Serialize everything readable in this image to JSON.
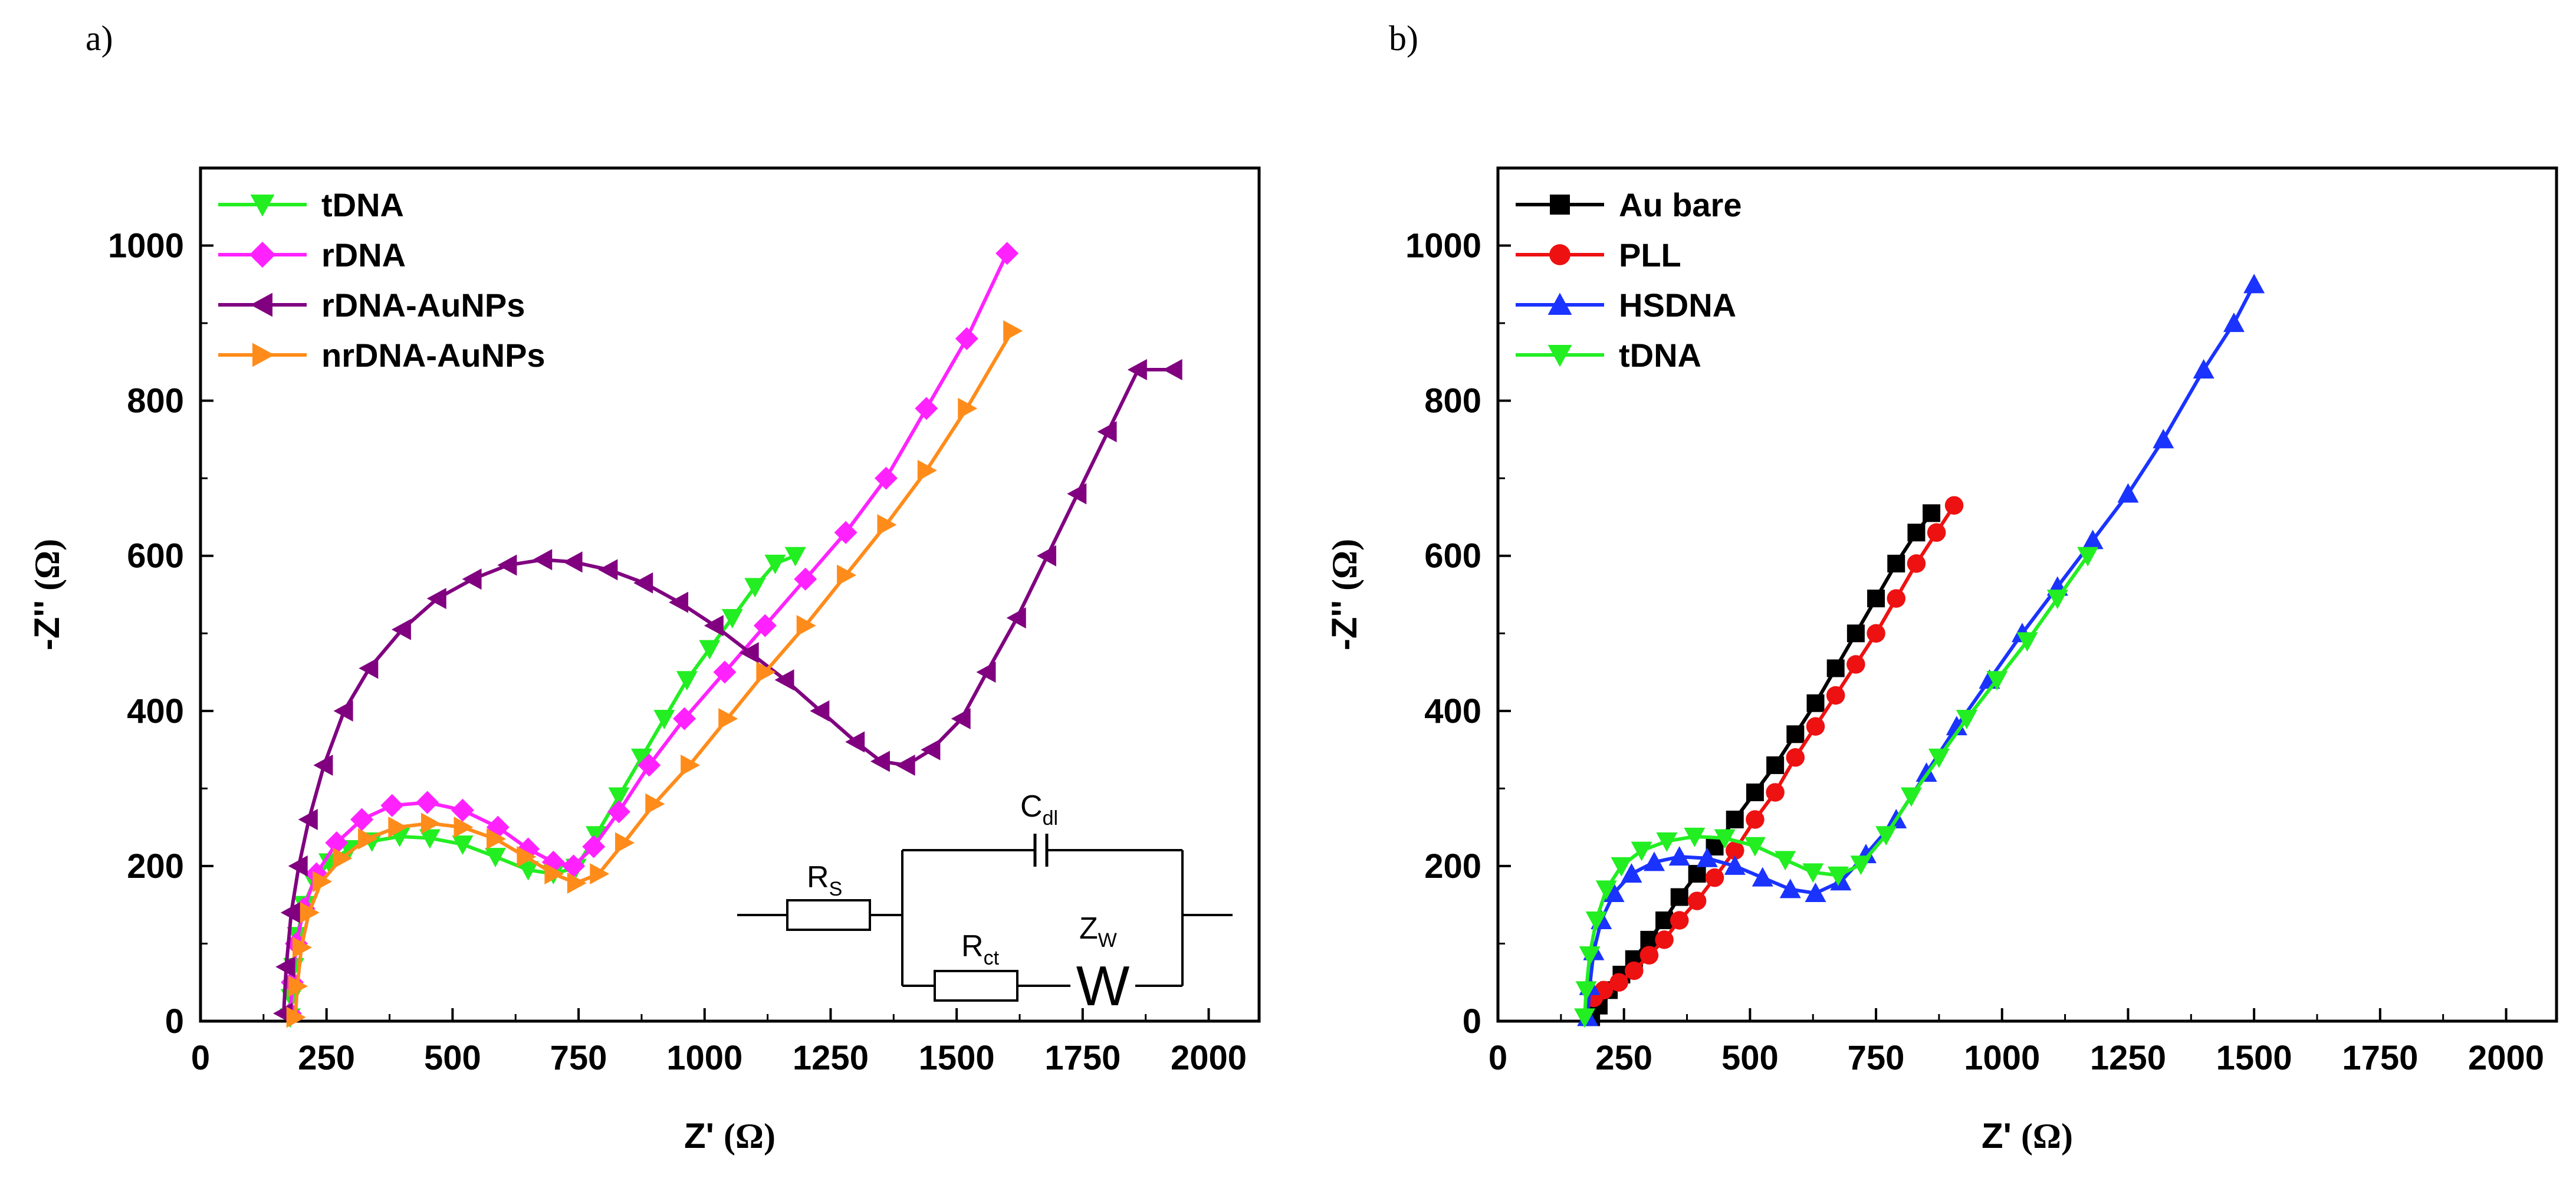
{
  "panels": [
    {
      "id": "a",
      "letter": "a)",
      "chart_data": {
        "type": "scatter",
        "title": "",
        "xlabel": "Z'",
        "xunit": "(Ω)",
        "ylabel": "-Z''",
        "yunit": "(Ω)",
        "xlim": [
          0,
          2100
        ],
        "ylim": [
          0,
          1100
        ],
        "xticks": [
          0,
          250,
          500,
          750,
          1000,
          1250,
          1500,
          1750,
          2000
        ],
        "yticks": [
          0,
          200,
          400,
          600,
          800,
          1000
        ],
        "legend_position": "top-left",
        "series": [
          {
            "name": "tDNA",
            "color": "#22ee22",
            "marker": "triangle-down",
            "x": [
              178,
              180,
              185,
              192,
              205,
              225,
              255,
              295,
              340,
              395,
              455,
              520,
              585,
              650,
              700,
              745,
              785,
              830,
              875,
              920,
              965,
              1010,
              1055,
              1100,
              1140,
              1180
            ],
            "y": [
              5,
              30,
              70,
              110,
              150,
              180,
              205,
              222,
              232,
              238,
              236,
              228,
              212,
              195,
              190,
              198,
              240,
              290,
              340,
              390,
              440,
              480,
              520,
              560,
              590,
              600
            ]
          },
          {
            "name": "rDNA",
            "color": "#ff22ff",
            "marker": "diamond",
            "x": [
              178,
              182,
              190,
              205,
              230,
              270,
              320,
              380,
              450,
              520,
              590,
              650,
              700,
              740,
              780,
              830,
              890,
              960,
              1040,
              1120,
              1200,
              1280,
              1360,
              1440,
              1520,
              1600
            ],
            "y": [
              10,
              50,
              100,
              145,
              190,
              230,
              260,
              278,
              282,
              272,
              250,
              222,
              205,
              200,
              225,
              270,
              330,
              390,
              450,
              510,
              570,
              630,
              700,
              790,
              880,
              990
            ]
          },
          {
            "name": "rDNA-AuNPs",
            "color": "#800080",
            "marker": "triangle-left",
            "x": [
              165,
              170,
              180,
              195,
              215,
              245,
              285,
              335,
              400,
              470,
              540,
              610,
              680,
              740,
              810,
              880,
              950,
              1020,
              1090,
              1160,
              1230,
              1300,
              1350,
              1400,
              1450,
              1510,
              1560,
              1620,
              1680,
              1740,
              1800,
              1860,
              1930
            ],
            "y": [
              10,
              70,
              140,
              200,
              260,
              330,
              400,
              455,
              505,
              545,
              570,
              588,
              595,
              592,
              582,
              565,
              540,
              510,
              475,
              440,
              400,
              360,
              335,
              330,
              350,
              390,
              450,
              520,
              600,
              680,
              760,
              840,
              840
            ]
          },
          {
            "name": "nrDNA-AuNPs",
            "color": "#ff8c1a",
            "marker": "triangle-right",
            "x": [
              188,
              192,
              200,
              215,
              240,
              280,
              330,
              390,
              455,
              520,
              585,
              645,
              700,
              745,
              790,
              840,
              900,
              970,
              1045,
              1120,
              1200,
              1280,
              1360,
              1440,
              1520,
              1610
            ],
            "y": [
              5,
              45,
              95,
              140,
              180,
              210,
              235,
              250,
              255,
              250,
              235,
              212,
              190,
              178,
              190,
              230,
              280,
              330,
              390,
              450,
              510,
              575,
              640,
              710,
              790,
              890
            ]
          }
        ]
      },
      "circuit": {
        "rs": "R",
        "rs_sub": "S",
        "cdl": "C",
        "cdl_sub": "dl",
        "rct": "R",
        "rct_sub": "ct",
        "zw": "Z",
        "zw_sub": "W",
        "w_symbol": "W"
      }
    },
    {
      "id": "b",
      "letter": "b)",
      "chart_data": {
        "type": "scatter",
        "title": "",
        "xlabel": "Z'",
        "xunit": "(Ω)",
        "ylabel": "-Z''",
        "yunit": "(Ω)",
        "xlim": [
          0,
          2100
        ],
        "ylim": [
          0,
          1100
        ],
        "xticks": [
          0,
          250,
          500,
          750,
          1000,
          1250,
          1500,
          1750,
          2000
        ],
        "yticks": [
          0,
          200,
          400,
          600,
          800,
          1000
        ],
        "legend_position": "top-left",
        "series": [
          {
            "name": "Au bare",
            "color": "#000000",
            "marker": "square",
            "x": [
              185,
              200,
              220,
              245,
              270,
              300,
              330,
              360,
              395,
              430,
              470,
              510,
              550,
              590,
              630,
              670,
              710,
              750,
              790,
              830,
              860
            ],
            "y": [
              5,
              20,
              40,
              60,
              80,
              105,
              130,
              160,
              190,
              225,
              260,
              295,
              330,
              370,
              410,
              455,
              500,
              545,
              590,
              630,
              655
            ]
          },
          {
            "name": "PLL",
            "color": "#ee1111",
            "marker": "circle",
            "x": [
              190,
              210,
              240,
              270,
              300,
              330,
              360,
              395,
              430,
              470,
              510,
              550,
              590,
              630,
              670,
              710,
              750,
              790,
              830,
              870,
              905
            ],
            "y": [
              30,
              40,
              50,
              65,
              85,
              105,
              130,
              155,
              185,
              220,
              260,
              295,
              340,
              380,
              420,
              460,
              500,
              545,
              590,
              630,
              665
            ]
          },
          {
            "name": "HSDNA",
            "color": "#1a33ff",
            "marker": "triangle-up",
            "x": [
              178,
              182,
              190,
              205,
              230,
              265,
              310,
              360,
              415,
              470,
              525,
              580,
              630,
              680,
              730,
              790,
              850,
              910,
              975,
              1040,
              1110,
              1180,
              1250,
              1320,
              1400,
              1460,
              1500
            ],
            "y": [
              5,
              45,
              90,
              130,
              165,
              190,
              205,
              212,
              210,
              200,
              185,
              170,
              165,
              180,
              215,
              260,
              320,
              380,
              440,
              500,
              560,
              620,
              680,
              750,
              840,
              900,
              950
            ]
          },
          {
            "name": "tDNA",
            "color": "#22ee22",
            "marker": "triangle-down",
            "x": [
              172,
              175,
              182,
              195,
              215,
              245,
              285,
              335,
              390,
              450,
              510,
              570,
              625,
              675,
              720,
              770,
              820,
              875,
              930,
              990,
              1050,
              1110,
              1170
            ],
            "y": [
              5,
              40,
              85,
              130,
              170,
              200,
              220,
              232,
              238,
              236,
              226,
              208,
              192,
              188,
              202,
              240,
              290,
              340,
              390,
              440,
              490,
              545,
              600
            ]
          }
        ]
      }
    }
  ]
}
